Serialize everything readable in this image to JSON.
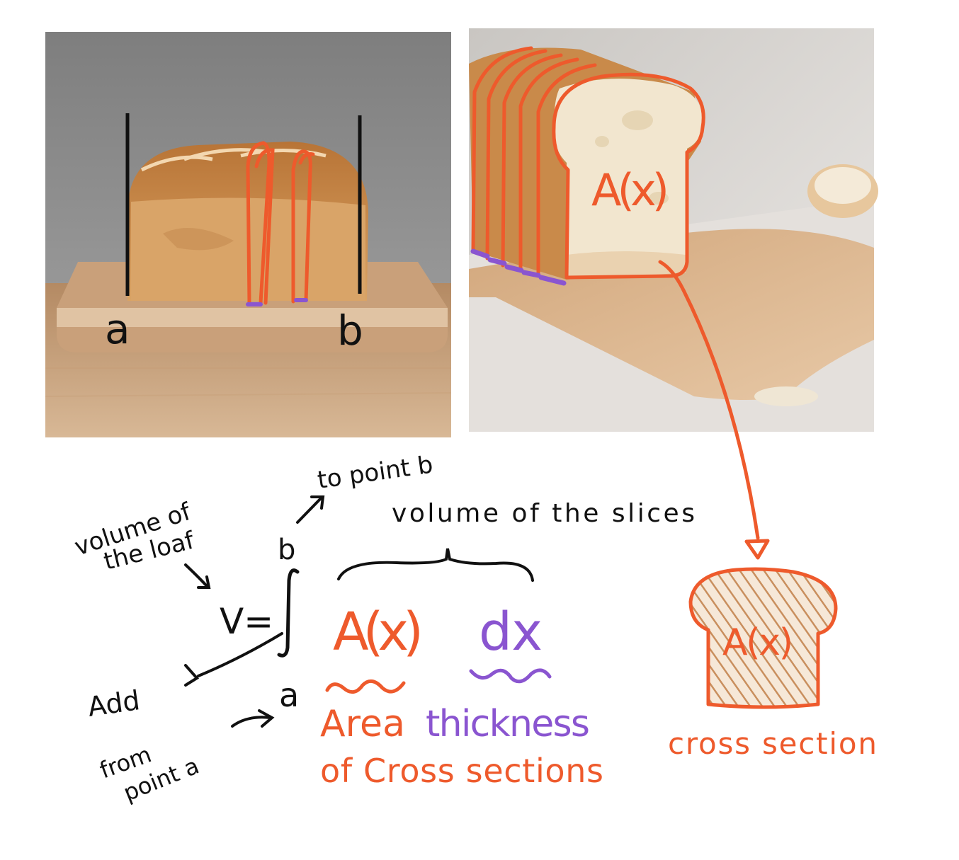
{
  "colors": {
    "ink": "#111111",
    "orange": "#ee5a2c",
    "purple": "#8a55d0",
    "crust": "#c98a4a",
    "crumb": "#f2e6cf",
    "board": "#d9b38a",
    "table": "#c9a27a",
    "wall": "#8f8f8f"
  },
  "photo_left": {
    "label_a": "a",
    "label_b": "b"
  },
  "photo_right": {
    "slice_label": "A(x)"
  },
  "notes": {
    "volume_loaf_line1": "volume of",
    "volume_loaf_line2": "the loaf",
    "to_point_b": "to point b",
    "volume_slices": "volume of the slices",
    "upper_limit": "b",
    "lower_limit": "a",
    "v_equals": "V=",
    "add": "Add",
    "from_point_a_line1": "from",
    "from_point_a_line2": "point a",
    "integrand_area": "A(x)",
    "integrand_dx": "dx",
    "area_line1": "Area",
    "area_line2": "of Cross sections",
    "thickness": "thickness",
    "toast_label": "A(x)",
    "cross_section": "cross section"
  }
}
